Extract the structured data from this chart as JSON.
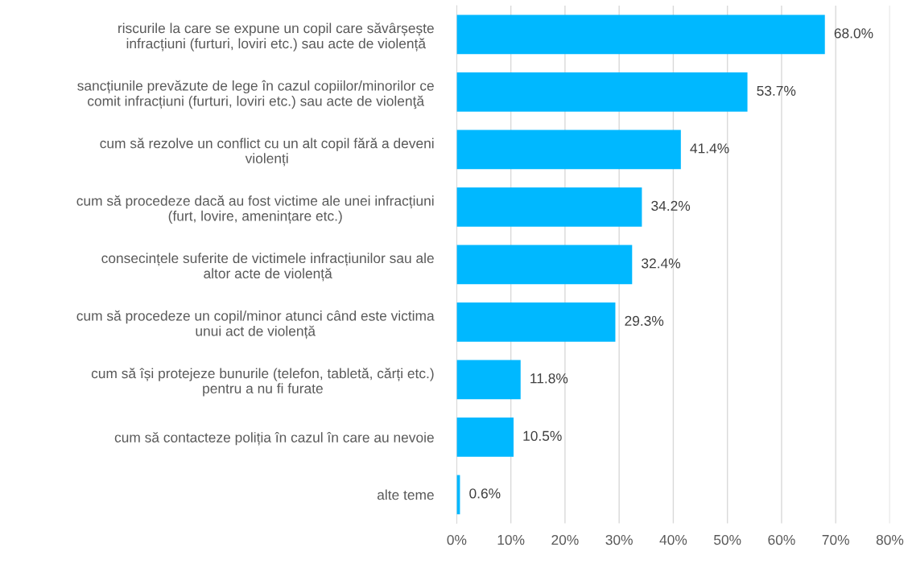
{
  "chart_data": {
    "type": "bar",
    "orientation": "horizontal",
    "categories": [
      "riscurile la care se expune un copil care săvârșește\ninfracțiuni (furturi, loviri etc.) sau acte de violență",
      "sancțiunile prevăzute de lege în cazul copiilor/minorilor ce\ncomit infracțiuni (furturi, loviri etc.) sau acte de violenţă",
      "cum să rezolve un conflict cu un alt copil fără a deveni\nviolenți",
      "cum să procedeze dacă au fost victime ale unei infracțiuni\n(furt, lovire, amenințare etc.)",
      "consecințele suferite de victimele infracțiunilor sau ale\naltor acte de violență",
      "cum să procedeze un copil/minor atunci când este victima\nunui act de violență",
      "cum să își protejeze bunurile (telefon, tabletă, cărți etc.)\npentru a nu fi furate",
      "cum să contacteze poliția în cazul în care au nevoie",
      "alte teme"
    ],
    "values": [
      68.0,
      53.7,
      41.4,
      34.2,
      32.4,
      29.3,
      11.8,
      10.5,
      0.6
    ],
    "value_labels": [
      "68.0%",
      "53.7%",
      "41.4%",
      "34.2%",
      "32.4%",
      "29.3%",
      "11.8%",
      "10.5%",
      "0.6%"
    ],
    "color": "#00b8ff",
    "xlim": [
      0,
      80
    ],
    "xticks": [
      {
        "value": 0,
        "label": "0%"
      },
      {
        "value": 10,
        "label": "10%"
      },
      {
        "value": 20,
        "label": "20%"
      },
      {
        "value": 30,
        "label": "30%"
      },
      {
        "value": 40,
        "label": "40%"
      },
      {
        "value": 50,
        "label": "50%"
      },
      {
        "value": 60,
        "label": "60%"
      },
      {
        "value": 70,
        "label": "70%"
      },
      {
        "value": 80,
        "label": "80%"
      }
    ],
    "grid": "x"
  }
}
